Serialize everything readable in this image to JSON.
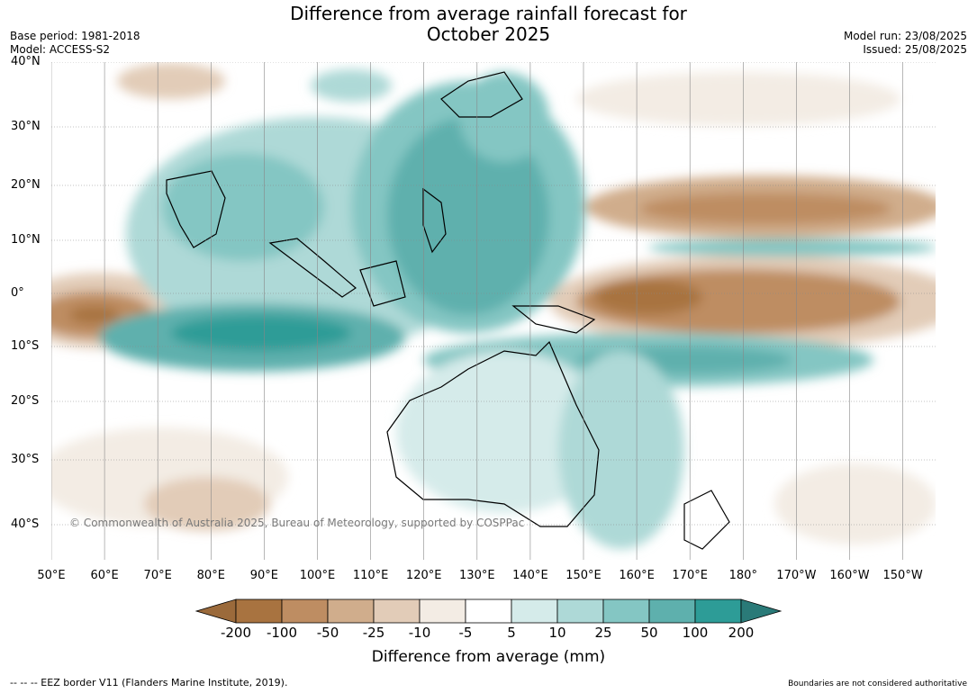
{
  "title_line1": "Difference from average rainfall forecast for",
  "title_line2": "October 2025",
  "left_meta": {
    "base_period": "Base period: 1981-2018",
    "model": "Model: ACCESS-S2"
  },
  "right_meta": {
    "model_run": "Model run: 23/08/2025",
    "issued": "Issued: 25/08/2025"
  },
  "lat_labels": [
    "40°N",
    "30°N",
    "20°N",
    "10°N",
    "0°",
    "10°S",
    "20°S",
    "30°S",
    "40°S"
  ],
  "lon_labels": [
    "50°E",
    "60°E",
    "70°E",
    "80°E",
    "90°E",
    "100°E",
    "110°E",
    "120°E",
    "130°E",
    "140°E",
    "150°E",
    "160°E",
    "170°E",
    "180°",
    "170°W",
    "160°W",
    "150°W"
  ],
  "copyright": "© Commonwealth of Australia 2025, Bureau of Meteorology, supported by COSPPac",
  "colorbar": {
    "ticks": [
      "-200",
      "-100",
      "-50",
      "-25",
      "-10",
      "-5",
      "5",
      "10",
      "25",
      "50",
      "100",
      "200"
    ],
    "colors": [
      "#a87340",
      "#be8d62",
      "#d0ad8c",
      "#e2ccb8",
      "#f3ece4",
      "#ffffff",
      "#d5ebea",
      "#aed9d7",
      "#84c6c3",
      "#5eb0ad",
      "#2d9c97"
    ],
    "low_extend_color": "#9b6a3b",
    "high_extend_color": "#2a7a78",
    "label": "Difference from average (mm)"
  },
  "footer_left": "--  --  -- EEZ border V11 (Flanders Marine Institute, 2019).",
  "footer_right": "Boundaries are not considered authoritative"
}
